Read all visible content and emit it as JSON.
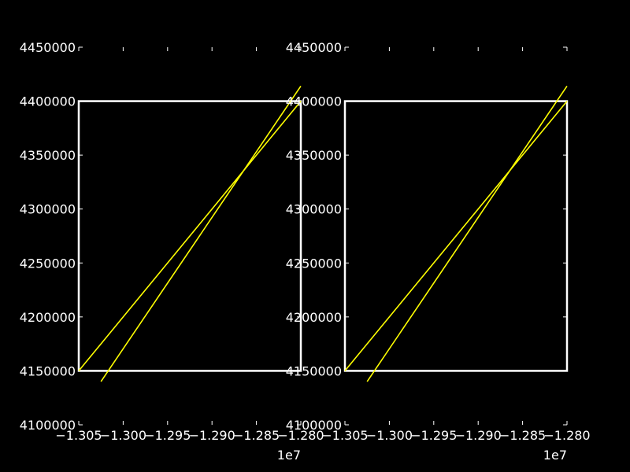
{
  "chart_data": [
    {
      "type": "line",
      "title": "",
      "xlabel": "",
      "ylabel": "",
      "xlim": [
        -13050000,
        -12800000
      ],
      "ylim": [
        4100000,
        4450000
      ],
      "x_offset_label": "1e7",
      "xtick_labels": [
        "−1.305",
        "−1.300",
        "−1.295",
        "−1.290",
        "−1.285",
        "−1.280"
      ],
      "xtick_values": [
        -13050000,
        -13000000,
        -12950000,
        -12900000,
        -12850000,
        -12800000
      ],
      "ytick_labels": [
        "4100000",
        "4150000",
        "4200000",
        "4250000",
        "4300000",
        "4350000",
        "4400000",
        "4450000"
      ],
      "ytick_values": [
        4100000,
        4150000,
        4200000,
        4250000,
        4300000,
        4350000,
        4400000,
        4450000
      ],
      "grid": false,
      "rectangle": {
        "x": [
          -13050000,
          -12800000
        ],
        "y": [
          4150000,
          4400000
        ],
        "color": "#ffffff"
      },
      "series": [
        {
          "x": [
            -13050000,
            -12800000
          ],
          "y": [
            4150000,
            4400000
          ],
          "color": "#ffff00"
        },
        {
          "x": [
            -13025000,
            -12800000
          ],
          "y": [
            4140000,
            4414000
          ],
          "color": "#ffff00"
        }
      ]
    },
    {
      "type": "line",
      "title": "",
      "xlabel": "",
      "ylabel": "",
      "xlim": [
        -13050000,
        -12800000
      ],
      "ylim": [
        4100000,
        4450000
      ],
      "x_offset_label": "1e7",
      "xtick_labels": [
        "−1.305",
        "−1.300",
        "−1.295",
        "−1.290",
        "−1.285",
        "−1.280"
      ],
      "xtick_values": [
        -13050000,
        -13000000,
        -12950000,
        -12900000,
        -12850000,
        -12800000
      ],
      "ytick_labels": [
        "4100000",
        "4150000",
        "4200000",
        "4250000",
        "4300000",
        "4350000",
        "4400000",
        "4450000"
      ],
      "ytick_values": [
        4100000,
        4150000,
        4200000,
        4250000,
        4300000,
        4350000,
        4400000,
        4450000
      ],
      "grid": false,
      "rectangle": {
        "x": [
          -13050000,
          -12800000
        ],
        "y": [
          4150000,
          4400000
        ],
        "color": "#ffffff"
      },
      "series": [
        {
          "x": [
            -13050000,
            -12800000
          ],
          "y": [
            4150000,
            4400000
          ],
          "color": "#ffff00"
        },
        {
          "x": [
            -13025000,
            -12800000
          ],
          "y": [
            4140000,
            4414000
          ],
          "color": "#ffff00"
        }
      ]
    }
  ]
}
